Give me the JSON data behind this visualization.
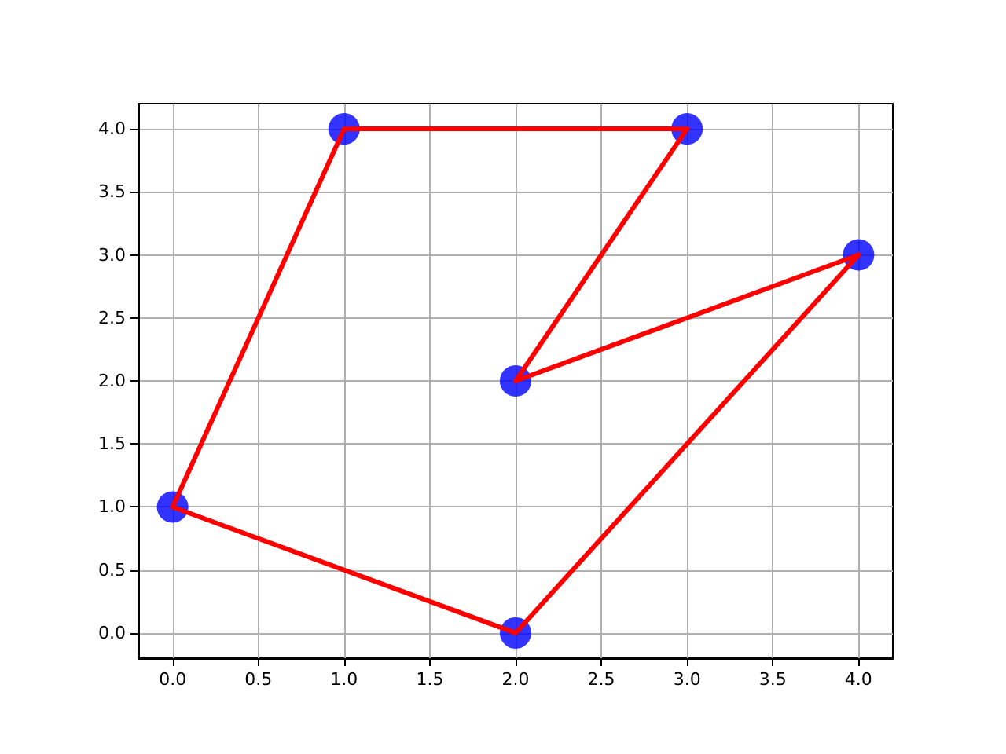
{
  "chart_data": {
    "type": "line",
    "series": [
      {
        "type": "scatter",
        "color": "#0000ff",
        "marker": "circle",
        "x": [
          0,
          1,
          3,
          2,
          4,
          2
        ],
        "values": [
          1,
          4,
          4,
          2,
          3,
          0
        ]
      },
      {
        "color": "#ff0000",
        "marker": "none",
        "line_style": "solid",
        "x": [
          0,
          1,
          3
        ],
        "values": [
          1,
          4,
          4
        ]
      },
      {
        "color": "#ff0000",
        "marker": "none",
        "line_style": "solid",
        "x": [
          3,
          2
        ],
        "values": [
          4,
          2
        ]
      },
      {
        "color": "#ff0000",
        "marker": "none",
        "line_style": "solid",
        "x": [
          2,
          4
        ],
        "values": [
          2,
          3
        ]
      },
      {
        "color": "#ff0000",
        "marker": "none",
        "line_style": "solid",
        "x": [
          4,
          2,
          0
        ],
        "values": [
          3,
          0,
          1
        ]
      }
    ],
    "xlim": [
      -0.2,
      4.2
    ],
    "ylim": [
      -0.2,
      4.2
    ],
    "xticks": [
      {
        "value": 0,
        "label": "0.0"
      },
      {
        "value": 0.5,
        "label": "0.5"
      },
      {
        "value": 1,
        "label": "1.0"
      },
      {
        "value": 1.5,
        "label": "1.5"
      },
      {
        "value": 2,
        "label": "2.0"
      },
      {
        "value": 2.5,
        "label": "2.5"
      },
      {
        "value": 3,
        "label": "3.0"
      },
      {
        "value": 3.5,
        "label": "3.5"
      },
      {
        "value": 4,
        "label": "4.0"
      }
    ],
    "yticks": [
      {
        "value": 0,
        "label": "0.0"
      },
      {
        "value": 0.5,
        "label": "0.5"
      },
      {
        "value": 1,
        "label": "1.0"
      },
      {
        "value": 1.5,
        "label": "1.5"
      },
      {
        "value": 2,
        "label": "2.0"
      },
      {
        "value": 2.5,
        "label": "2.5"
      },
      {
        "value": 3,
        "label": "3.0"
      },
      {
        "value": 3.5,
        "label": "3.5"
      },
      {
        "value": 4,
        "label": "4.0"
      }
    ],
    "grid": true
  }
}
